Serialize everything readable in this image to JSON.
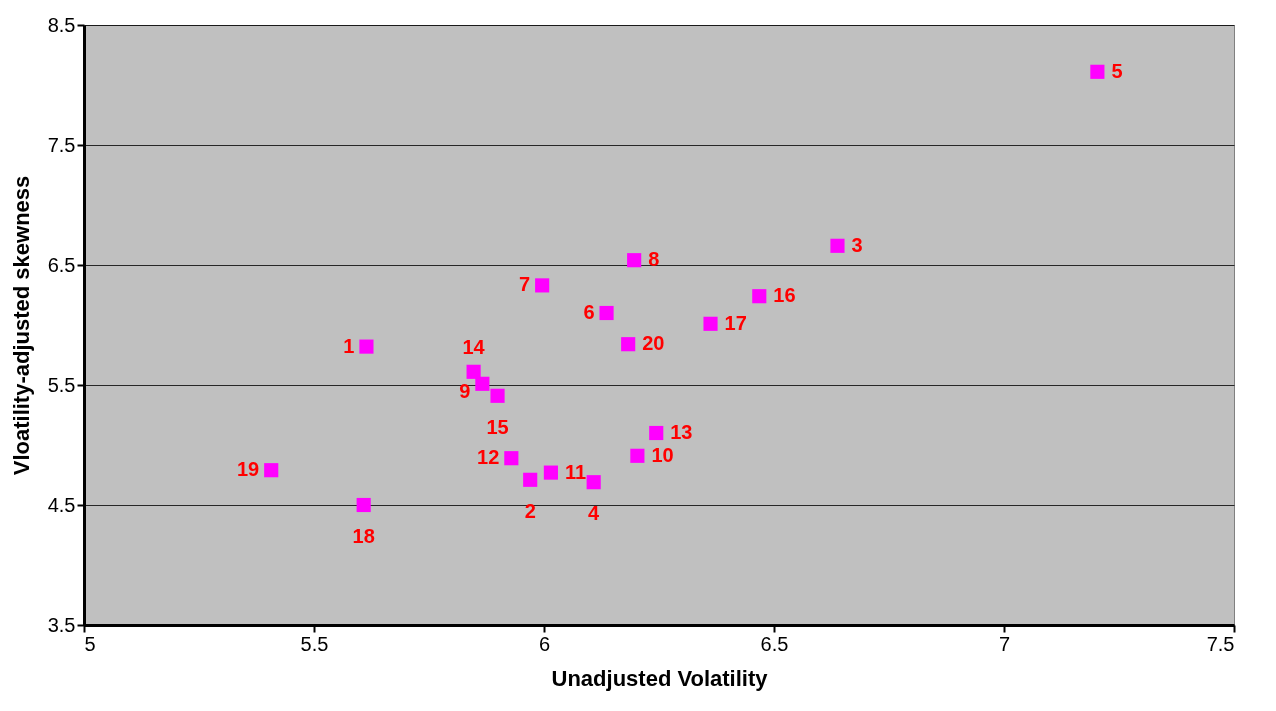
{
  "chart_data": {
    "type": "scatter",
    "xlabel": "Unadjusted Volatility",
    "ylabel": "Vloatility-adjusted skewness",
    "x": [
      5.614,
      5.97,
      6.638,
      6.108,
      7.203,
      6.136,
      5.996,
      6.196,
      5.866,
      6.203,
      6.015,
      5.929,
      6.244,
      5.847,
      5.899,
      6.468,
      6.362,
      5.608,
      5.407,
      6.183
    ],
    "series": [
      {
        "color": "#ff00ff",
        "values": [
          5.82,
          4.71,
          6.66,
          4.69,
          8.11,
          6.1,
          6.33,
          6.54,
          5.51,
          4.91,
          4.77,
          4.89,
          5.1,
          5.61,
          5.41,
          6.24,
          6.01,
          4.5,
          4.79,
          5.84
        ]
      }
    ],
    "annotations": [
      {
        "text": "1",
        "x": 5.614,
        "y": 5.82
      },
      {
        "text": "2",
        "x": 5.97,
        "y": 4.71
      },
      {
        "text": "3",
        "x": 6.638,
        "y": 6.66
      },
      {
        "text": "4",
        "x": 6.108,
        "y": 4.69
      },
      {
        "text": "5",
        "x": 7.203,
        "y": 8.11
      },
      {
        "text": "6",
        "x": 6.136,
        "y": 6.1
      },
      {
        "text": "7",
        "x": 5.996,
        "y": 6.33
      },
      {
        "text": "8",
        "x": 6.196,
        "y": 6.54
      },
      {
        "text": "9",
        "x": 5.866,
        "y": 5.51
      },
      {
        "text": "10",
        "x": 6.203,
        "y": 4.91
      },
      {
        "text": "11",
        "x": 6.015,
        "y": 4.77
      },
      {
        "text": "12",
        "x": 5.929,
        "y": 4.89
      },
      {
        "text": "13",
        "x": 6.244,
        "y": 5.1
      },
      {
        "text": "14",
        "x": 5.847,
        "y": 5.61
      },
      {
        "text": "15",
        "x": 5.899,
        "y": 5.41
      },
      {
        "text": "16",
        "x": 6.468,
        "y": 6.24
      },
      {
        "text": "17",
        "x": 6.362,
        "y": 6.01
      },
      {
        "text": "18",
        "x": 5.608,
        "y": 4.5
      },
      {
        "text": "19",
        "x": 5.407,
        "y": 4.79
      },
      {
        "text": "20",
        "x": 6.183,
        "y": 5.84
      }
    ],
    "xlim": [
      5,
      7.5
    ],
    "xticks": [
      5,
      5.5,
      6,
      6.5,
      7,
      7.5
    ],
    "ylim": [
      3.5,
      8.5
    ],
    "yticks": [
      3.5,
      4.5,
      5.5,
      6.5,
      7.5,
      8.5
    ],
    "grid": "y",
    "marker": "square"
  }
}
